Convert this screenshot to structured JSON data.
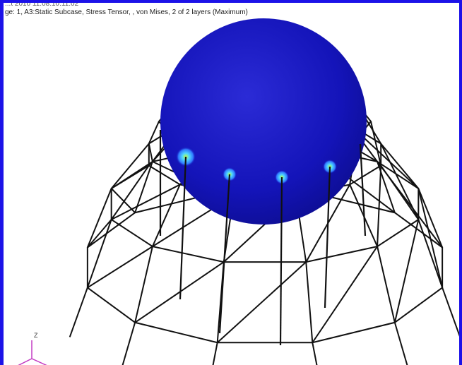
{
  "viewport": {
    "frame_color": "#1c12e8",
    "header_line1": "...t 2010 11:08:10:11:02",
    "header_line2": "ge: 1, A3:Static Subcase, Stress Tensor, , von Mises, 2 of 2 layers (Maximum)"
  },
  "model": {
    "sphere_color": "#1414b9",
    "sphere_highlight": "#2b2bd6",
    "frame_line_color": "#111111",
    "hotspot_color": "#4fa8ff",
    "hotspot_core": "#b9ff4a"
  },
  "axis_triad": {
    "z_label": "Z",
    "axis_color": "#c33cc3"
  }
}
